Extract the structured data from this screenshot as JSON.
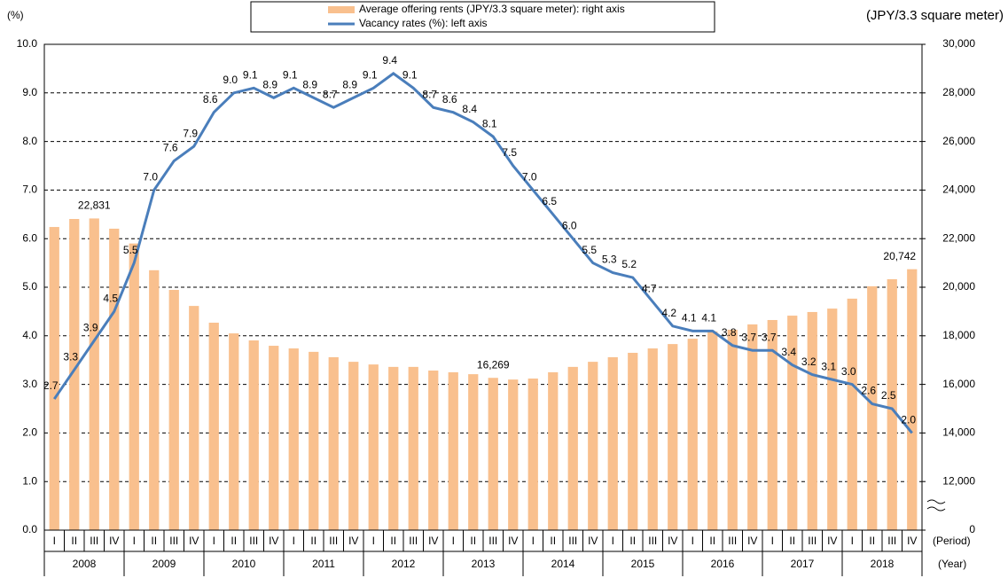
{
  "chart_data": {
    "type": "bar-line",
    "y_axis_label": "(%)",
    "y2_axis_label": "(JPY/3.3 square meter)",
    "period_label": "(Period)",
    "year_label": "(Year)",
    "categories": [
      "I",
      "II",
      "III",
      "IV",
      "I",
      "II",
      "III",
      "IV",
      "I",
      "II",
      "III",
      "IV",
      "I",
      "II",
      "III",
      "IV",
      "I",
      "II",
      "III",
      "IV",
      "I",
      "II",
      "III",
      "IV",
      "I",
      "II",
      "III",
      "IV",
      "I",
      "II",
      "III",
      "IV",
      "I",
      "II",
      "III",
      "IV",
      "I",
      "II",
      "III",
      "IV",
      "I",
      "II",
      "III",
      "IV"
    ],
    "years": [
      "2008",
      "2009",
      "2010",
      "2011",
      "2012",
      "2013",
      "2014",
      "2015",
      "2016",
      "2017",
      "2018"
    ],
    "series": [
      {
        "name": "Average offering rents (JPY/3.3 square meter): right axis",
        "type": "bar",
        "axis": "y2",
        "color": "#f9c08e",
        "values": [
          22480,
          22810,
          22831,
          22410,
          21800,
          20700,
          19890,
          19230,
          18540,
          18100,
          17810,
          17590,
          17480,
          17340,
          17120,
          16930,
          16820,
          16720,
          16720,
          16570,
          16500,
          16420,
          16269,
          16200,
          16240,
          16500,
          16720,
          16930,
          17120,
          17300,
          17480,
          17660,
          17880,
          18180,
          18250,
          18470,
          18650,
          18830,
          18980,
          19120,
          19530,
          20040,
          20330,
          20742
        ],
        "value_labels": [
          null,
          null,
          "22,831",
          null,
          null,
          null,
          null,
          null,
          null,
          null,
          null,
          null,
          null,
          null,
          null,
          null,
          null,
          null,
          null,
          null,
          null,
          null,
          "16,269",
          null,
          null,
          null,
          null,
          null,
          null,
          null,
          null,
          null,
          null,
          null,
          null,
          null,
          null,
          null,
          null,
          null,
          null,
          null,
          null,
          "20,742"
        ]
      },
      {
        "name": "Vacancy rates (%): left axis",
        "type": "line",
        "color": "#4a7ebb",
        "values": [
          2.7,
          3.3,
          3.9,
          4.5,
          5.5,
          7.0,
          7.6,
          7.9,
          8.6,
          9.0,
          9.1,
          8.9,
          9.1,
          8.9,
          8.7,
          8.9,
          9.1,
          9.4,
          9.1,
          8.7,
          8.6,
          8.4,
          8.1,
          7.5,
          7.0,
          6.5,
          6.0,
          5.5,
          5.3,
          5.2,
          4.7,
          4.2,
          4.1,
          4.1,
          3.8,
          3.7,
          3.7,
          3.4,
          3.2,
          3.1,
          3.0,
          2.6,
          2.5,
          2.0
        ],
        "value_labels": [
          "2.7",
          "3.3",
          "3.9",
          "4.5",
          "5.5",
          "7.0",
          "7.6",
          "7.9",
          "8.6",
          "9.0",
          "9.1",
          "8.9",
          "9.1",
          "8.9",
          "8.7",
          "8.9",
          "9.1",
          "9.4",
          "9.1",
          "8.7",
          "8.6",
          "8.4",
          "8.1",
          "7.5",
          "7.0",
          "6.5",
          "6.0",
          "5.5",
          "5.3",
          "5.2",
          "4.7",
          "4.2",
          "4.1",
          "4.1",
          "3.8",
          "3.7",
          "3.7",
          "3.4",
          "3.2",
          "3.1",
          "3.0",
          "2.6",
          "2.5",
          "2.0"
        ]
      }
    ],
    "ylim": [
      0,
      10
    ],
    "yticks": [
      {
        "value": 0,
        "label": "0.0"
      },
      {
        "value": 1,
        "label": "1.0"
      },
      {
        "value": 2,
        "label": "2.0"
      },
      {
        "value": 3,
        "label": "3.0"
      },
      {
        "value": 4,
        "label": "4.0"
      },
      {
        "value": 5,
        "label": "5.0"
      },
      {
        "value": 6,
        "label": "6.0"
      },
      {
        "value": 7,
        "label": "7.0"
      },
      {
        "value": 8,
        "label": "8.0"
      },
      {
        "value": 9,
        "label": "9.0"
      },
      {
        "value": 10,
        "label": "10.0"
      }
    ],
    "y2lim": [
      0,
      30000
    ],
    "y2break": [
      0,
      10000
    ],
    "y2ticks": [
      0,
      {
        "value": 12000,
        "label": "12,000"
      },
      {
        "value": 14000,
        "label": "14,000"
      },
      {
        "value": 16000,
        "label": "16,000"
      },
      {
        "value": 18000,
        "label": "18,000"
      },
      {
        "value": 20000,
        "label": "20,000"
      },
      {
        "value": 22000,
        "label": "22,000"
      },
      {
        "value": 24000,
        "label": "24,000"
      },
      {
        "value": 26000,
        "label": "26,000"
      },
      {
        "value": 28000,
        "label": "28,000"
      },
      {
        "value": 30000,
        "label": "30,000"
      }
    ],
    "grid": true
  }
}
